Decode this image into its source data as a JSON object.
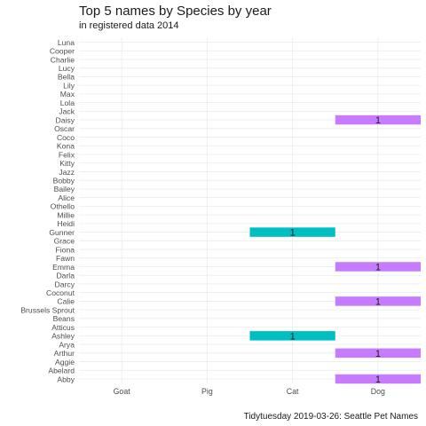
{
  "chart_data": {
    "type": "bar",
    "orientation": "horizontal",
    "title": "Top 5 names by Species by year",
    "subtitle": "in registered data 2014",
    "caption": "Tidytuesday 2019-03-26: Seattle Pet Names",
    "x_categories": [
      "Goat",
      "Pig",
      "Cat",
      "Dog"
    ],
    "y_categories": [
      "Luna",
      "Cooper",
      "Charlie",
      "Lucy",
      "Bella",
      "Lily",
      "Max",
      "Lola",
      "Jack",
      "Daisy",
      "Oscar",
      "Coco",
      "Kona",
      "Felix",
      "Kitty",
      "Jazz",
      "Bobby",
      "Bailey",
      "Alice",
      "Othello",
      "Millie",
      "Heidi",
      "Gunner",
      "Grace",
      "Fiona",
      "Fawn",
      "Emma",
      "Darla",
      "Darcy",
      "Coconut",
      "Calie",
      "Brussels Sprout",
      "Beans",
      "Atticus",
      "Ashley",
      "Arya",
      "Arthur",
      "Aggie",
      "Abelard",
      "Abby"
    ],
    "bars": [
      {
        "name": "Daisy",
        "species": "Dog",
        "value": 1,
        "label": "1",
        "color": "#c77cff"
      },
      {
        "name": "Gunner",
        "species": "Cat",
        "value": 1,
        "label": "1",
        "color": "#00bfc4"
      },
      {
        "name": "Emma",
        "species": "Dog",
        "value": 1,
        "label": "1",
        "color": "#c77cff"
      },
      {
        "name": "Calie",
        "species": "Dog",
        "value": 1,
        "label": "1",
        "color": "#c77cff"
      },
      {
        "name": "Ashley",
        "species": "Cat",
        "value": 1,
        "label": "1",
        "color": "#00bfc4"
      },
      {
        "name": "Arthur",
        "species": "Dog",
        "value": 1,
        "label": "1",
        "color": "#c77cff"
      },
      {
        "name": "Abby",
        "species": "Dog",
        "value": 1,
        "label": "1",
        "color": "#c77cff"
      }
    ],
    "legend": "none",
    "grid": true
  }
}
